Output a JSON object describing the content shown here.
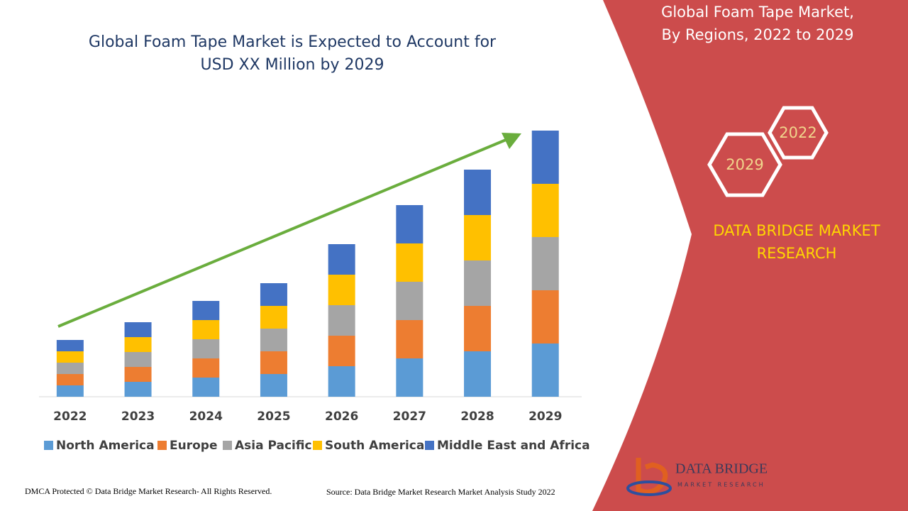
{
  "chart_data": {
    "type": "stacked-bar",
    "title": [
      "Global Foam Tape Market is Expected to Account for",
      "USD XX Million by 2029"
    ],
    "categories": [
      "2022",
      "2023",
      "2024",
      "2025",
      "2026",
      "2027",
      "2028",
      "2029"
    ],
    "series": [
      {
        "name": "North America",
        "color": "#5b9bd5",
        "values": [
          16,
          21,
          27,
          32,
          43,
          54,
          64,
          75
        ]
      },
      {
        "name": "Europe",
        "color": "#ed7d31",
        "values": [
          16,
          21,
          27,
          32,
          43,
          54,
          64,
          75
        ]
      },
      {
        "name": "Asia Pacific",
        "color": "#a5a5a5",
        "values": [
          16,
          21,
          27,
          32,
          43,
          54,
          64,
          75
        ]
      },
      {
        "name": "South America",
        "color": "#ffc000",
        "values": [
          16,
          21,
          27,
          32,
          43,
          54,
          64,
          75
        ]
      },
      {
        "name": "Middle East and Africa",
        "color": "#4472c4",
        "values": [
          16,
          21,
          27,
          32,
          43,
          54,
          64,
          75
        ]
      }
    ],
    "legend": "bottom"
  },
  "panel": {
    "title": [
      "Global Foam Tape Market,",
      "By Regions, 2022 to 2029"
    ],
    "hexagons": [
      "2022",
      "2029"
    ],
    "brand": [
      "DATA BRIDGE MARKET",
      "RESEARCH"
    ]
  },
  "logo": {
    "name": "DATA BRIDGE",
    "tagline": "MARKET RESEARCH"
  },
  "footer": {
    "copyright": "DMCA Protected © Data Bridge Market Research- All Rights Reserved.",
    "source": "Source: Data Bridge Market Research Market Analysis Study 2022"
  }
}
